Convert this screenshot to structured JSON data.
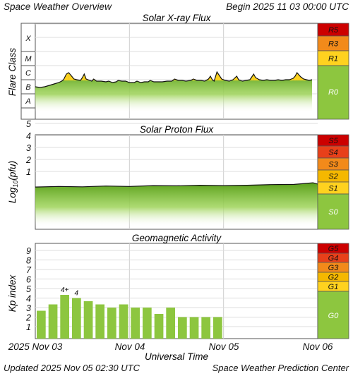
{
  "header": {
    "left": "Space Weather Overview",
    "right": "Begin 2025 11 03 00:00 UTC"
  },
  "footer": {
    "updated": "Updated 2025 Nov 05 02:30 UTC",
    "center": "Space Weather Prediction Center"
  },
  "xaxis": {
    "label": "Universal Time",
    "ticks": [
      "2025 Nov 03",
      "Nov 04",
      "Nov 05",
      "Nov 06"
    ]
  },
  "colors": {
    "green": "#8dc63f",
    "yellow": "#ffd21f",
    "gold": "#f5b800",
    "orange": "#f28a1a",
    "red_orange": "#e8401a",
    "red": "#cc0000",
    "grid": "#cfcfcf"
  },
  "chart_data": [
    {
      "type": "area",
      "title": "Solar X-ray Flux",
      "ylabel": "Flare Class",
      "class_labels": [
        "X",
        "M",
        "C",
        "B",
        "A"
      ],
      "scale_title": "R",
      "scale": [
        {
          "label": "R5",
          "color": "#cc0000"
        },
        {
          "label": "R3",
          "color": "#f28a1a"
        },
        {
          "label": "R1",
          "color": "#ffd21f"
        },
        {
          "label": "R0",
          "color": "#8dc63f"
        }
      ],
      "x_unit": "days since 2025-11-03 00:00 UTC",
      "xlim": [
        0,
        3
      ],
      "flux_level_class_units": [
        [
          0.0,
          1.55
        ],
        [
          0.05,
          1.5
        ],
        [
          0.1,
          1.55
        ],
        [
          0.15,
          1.65
        ],
        [
          0.2,
          1.75
        ],
        [
          0.25,
          1.85
        ],
        [
          0.28,
          1.95
        ],
        [
          0.3,
          2.05
        ],
        [
          0.33,
          2.45
        ],
        [
          0.355,
          2.55
        ],
        [
          0.38,
          2.35
        ],
        [
          0.41,
          2.1
        ],
        [
          0.44,
          2.05
        ],
        [
          0.48,
          2.0
        ],
        [
          0.5,
          2.2
        ],
        [
          0.52,
          2.45
        ],
        [
          0.54,
          2.1
        ],
        [
          0.58,
          2.0
        ],
        [
          0.6,
          1.95
        ],
        [
          0.62,
          2.1
        ],
        [
          0.65,
          1.95
        ],
        [
          0.7,
          1.95
        ],
        [
          0.75,
          1.9
        ],
        [
          0.78,
          1.95
        ],
        [
          0.82,
          1.85
        ],
        [
          0.86,
          1.9
        ],
        [
          0.88,
          2.0
        ],
        [
          0.92,
          1.95
        ],
        [
          0.96,
          1.95
        ],
        [
          1.0,
          1.85
        ],
        [
          1.05,
          1.85
        ],
        [
          1.08,
          1.95
        ],
        [
          1.12,
          1.85
        ],
        [
          1.16,
          1.9
        ],
        [
          1.2,
          1.9
        ],
        [
          1.22,
          2.0
        ],
        [
          1.26,
          1.9
        ],
        [
          1.3,
          1.9
        ],
        [
          1.35,
          1.9
        ],
        [
          1.4,
          1.95
        ],
        [
          1.45,
          1.95
        ],
        [
          1.48,
          2.1
        ],
        [
          1.52,
          2.0
        ],
        [
          1.56,
          2.0
        ],
        [
          1.6,
          1.95
        ],
        [
          1.65,
          2.0
        ],
        [
          1.68,
          2.1
        ],
        [
          1.72,
          2.0
        ],
        [
          1.76,
          2.0
        ],
        [
          1.8,
          1.95
        ],
        [
          1.84,
          2.1
        ],
        [
          1.86,
          2.3
        ],
        [
          1.88,
          2.05
        ],
        [
          1.9,
          1.95
        ],
        [
          1.93,
          2.6
        ],
        [
          1.95,
          2.4
        ],
        [
          1.98,
          2.1
        ],
        [
          2.02,
          2.0
        ],
        [
          2.06,
          1.95
        ],
        [
          2.1,
          2.05
        ],
        [
          2.14,
          2.3
        ],
        [
          2.16,
          2.05
        ],
        [
          2.2,
          1.95
        ],
        [
          2.24,
          2.0
        ],
        [
          2.28,
          2.05
        ],
        [
          2.3,
          2.25
        ],
        [
          2.32,
          2.45
        ],
        [
          2.34,
          2.2
        ],
        [
          2.38,
          2.05
        ],
        [
          2.42,
          2.0
        ],
        [
          2.46,
          2.05
        ],
        [
          2.5,
          2.0
        ],
        [
          2.54,
          2.0
        ],
        [
          2.58,
          2.05
        ],
        [
          2.62,
          2.0
        ],
        [
          2.66,
          2.05
        ],
        [
          2.7,
          2.05
        ],
        [
          2.74,
          2.15
        ],
        [
          2.76,
          2.3
        ],
        [
          2.78,
          2.55
        ],
        [
          2.8,
          2.4
        ],
        [
          2.82,
          2.25
        ],
        [
          2.85,
          2.1
        ],
        [
          2.88,
          2.05
        ],
        [
          2.91,
          2.0
        ],
        [
          2.94,
          2.05
        ],
        [
          2.97,
          2.0
        ],
        [
          3.0,
          1.95
        ]
      ]
    },
    {
      "type": "area",
      "title": "Solar Proton Flux",
      "ylabel": "Log10(pfu)",
      "ylim": [
        -1.5,
        6
      ],
      "yticks": [
        1,
        2,
        3,
        4,
        5
      ],
      "scale_title": "S",
      "scale": [
        {
          "label": "S5",
          "color": "#cc0000"
        },
        {
          "label": "S4",
          "color": "#e8401a"
        },
        {
          "label": "S3",
          "color": "#f28a1a"
        },
        {
          "label": "S2",
          "color": "#f5b800"
        },
        {
          "label": "S1",
          "color": "#ffd21f"
        },
        {
          "label": "S0",
          "color": "#8dc63f"
        }
      ],
      "x_unit": "days since 2025-11-03 00:00 UTC",
      "xlim": [
        0,
        3
      ],
      "values": [
        [
          0.0,
          -0.3
        ],
        [
          0.25,
          -0.25
        ],
        [
          0.5,
          -0.28
        ],
        [
          0.75,
          -0.22
        ],
        [
          1.0,
          -0.25
        ],
        [
          1.25,
          -0.18
        ],
        [
          1.5,
          -0.2
        ],
        [
          1.75,
          -0.15
        ],
        [
          2.0,
          -0.18
        ],
        [
          2.25,
          -0.15
        ],
        [
          2.5,
          -0.1
        ],
        [
          2.75,
          -0.08
        ],
        [
          2.95,
          0.05
        ],
        [
          3.0,
          -0.05
        ]
      ]
    },
    {
      "type": "bar",
      "title": "Geomagnetic Activity",
      "ylabel": "Kp index",
      "ylim": [
        0,
        10
      ],
      "yticks": [
        1,
        2,
        3,
        4,
        5,
        6,
        7,
        8,
        9
      ],
      "scale_title": "G",
      "scale": [
        {
          "label": "G5",
          "color": "#cc0000"
        },
        {
          "label": "G4",
          "color": "#e8401a"
        },
        {
          "label": "G3",
          "color": "#f28a1a"
        },
        {
          "label": "G2",
          "color": "#f5b800"
        },
        {
          "label": "G1",
          "color": "#ffd21f"
        },
        {
          "label": "G0",
          "color": "#8dc63f"
        }
      ],
      "x_unit": "3-hour intervals since 2025-11-03 00:00 UTC",
      "values": [
        2.67,
        3.33,
        4.33,
        4.0,
        3.67,
        3.33,
        3.0,
        3.33,
        3.0,
        3.0,
        2.33,
        3.0,
        2.0,
        2.0,
        2.0,
        2.0
      ],
      "data_labels": [
        {
          "index": 2,
          "text": "4+"
        },
        {
          "index": 3,
          "text": "4"
        }
      ]
    }
  ]
}
